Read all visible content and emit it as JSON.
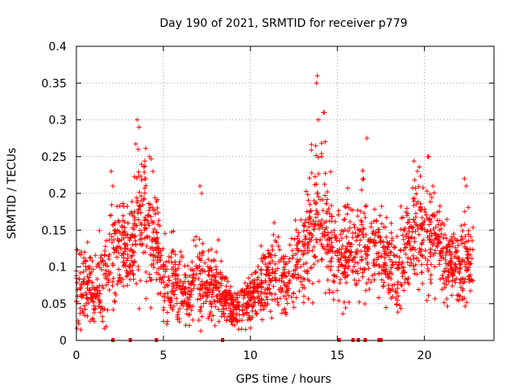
{
  "chart_data": {
    "type": "scatter",
    "title": "Day 190 of 2021, SRMTID for receiver p779",
    "xlabel": "GPS time / hours",
    "ylabel": "SRMTID / TECUs",
    "xlim": [
      0,
      24
    ],
    "ylim": [
      0,
      0.4
    ],
    "xticks": [
      0,
      5,
      10,
      15,
      20
    ],
    "xtick_labels": [
      "0",
      "5",
      "10",
      "15",
      "20"
    ],
    "yticks": [
      0,
      0.05,
      0.1,
      0.15,
      0.2,
      0.25,
      0.3,
      0.35,
      0.4
    ],
    "ytick_labels": [
      "0",
      "0.05",
      "0.1",
      "0.15",
      "0.2",
      "0.25",
      "0.3",
      "0.35",
      "0.4"
    ],
    "grid": true,
    "marker": "+",
    "color": "#ff0000",
    "series": [
      {
        "name": "SRMTID",
        "envelope": [
          [
            0.0,
            0.09,
            0.04
          ],
          [
            0.5,
            0.08,
            0.03
          ],
          [
            1.0,
            0.07,
            0.03
          ],
          [
            1.5,
            0.07,
            0.03
          ],
          [
            2.0,
            0.12,
            0.04
          ],
          [
            2.5,
            0.13,
            0.035
          ],
          [
            3.0,
            0.11,
            0.035
          ],
          [
            3.5,
            0.17,
            0.05
          ],
          [
            4.0,
            0.16,
            0.05
          ],
          [
            4.5,
            0.14,
            0.04
          ],
          [
            5.0,
            0.09,
            0.035
          ],
          [
            5.5,
            0.08,
            0.03
          ],
          [
            6.0,
            0.07,
            0.025
          ],
          [
            6.5,
            0.06,
            0.025
          ],
          [
            7.0,
            0.09,
            0.04
          ],
          [
            7.5,
            0.07,
            0.025
          ],
          [
            8.0,
            0.08,
            0.025
          ],
          [
            8.5,
            0.06,
            0.02
          ],
          [
            9.0,
            0.045,
            0.015
          ],
          [
            9.5,
            0.05,
            0.02
          ],
          [
            10.0,
            0.06,
            0.02
          ],
          [
            10.5,
            0.07,
            0.025
          ],
          [
            11.0,
            0.08,
            0.025
          ],
          [
            11.5,
            0.09,
            0.03
          ],
          [
            12.0,
            0.08,
            0.025
          ],
          [
            12.5,
            0.1,
            0.03
          ],
          [
            13.0,
            0.12,
            0.035
          ],
          [
            13.5,
            0.17,
            0.05
          ],
          [
            14.0,
            0.18,
            0.05
          ],
          [
            14.5,
            0.14,
            0.04
          ],
          [
            15.0,
            0.11,
            0.035
          ],
          [
            15.5,
            0.12,
            0.035
          ],
          [
            16.0,
            0.12,
            0.03
          ],
          [
            16.5,
            0.13,
            0.04
          ],
          [
            17.0,
            0.12,
            0.04
          ],
          [
            17.5,
            0.12,
            0.035
          ],
          [
            18.0,
            0.1,
            0.03
          ],
          [
            18.5,
            0.09,
            0.03
          ],
          [
            19.0,
            0.13,
            0.04
          ],
          [
            19.5,
            0.15,
            0.045
          ],
          [
            20.0,
            0.14,
            0.04
          ],
          [
            20.5,
            0.15,
            0.04
          ],
          [
            21.0,
            0.12,
            0.035
          ],
          [
            21.5,
            0.11,
            0.03
          ],
          [
            22.0,
            0.1,
            0.03
          ],
          [
            22.5,
            0.11,
            0.035
          ],
          [
            22.8,
            0.11,
            0.03
          ]
        ],
        "peaks": [
          [
            2.0,
            0.23
          ],
          [
            2.1,
            0.21
          ],
          [
            3.5,
            0.3
          ],
          [
            3.6,
            0.29
          ],
          [
            3.55,
            0.26
          ],
          [
            4.2,
            0.25
          ],
          [
            4.4,
            0.23
          ],
          [
            7.1,
            0.21
          ],
          [
            7.2,
            0.2
          ],
          [
            13.8,
            0.35
          ],
          [
            13.85,
            0.36
          ],
          [
            13.9,
            0.3
          ],
          [
            14.2,
            0.31
          ],
          [
            14.25,
            0.31
          ],
          [
            14.3,
            0.27
          ],
          [
            14.1,
            0.25
          ],
          [
            16.7,
            0.275
          ],
          [
            16.5,
            0.22
          ],
          [
            20.2,
            0.25
          ],
          [
            20.25,
            0.25
          ],
          [
            19.6,
            0.23
          ],
          [
            22.3,
            0.22
          ],
          [
            22.4,
            0.21
          ]
        ],
        "zero_values_at": [
          2.1,
          3.1,
          4.6,
          8.4,
          15.1,
          15.9,
          16.2,
          16.6,
          17.4,
          17.5
        ]
      }
    ]
  }
}
